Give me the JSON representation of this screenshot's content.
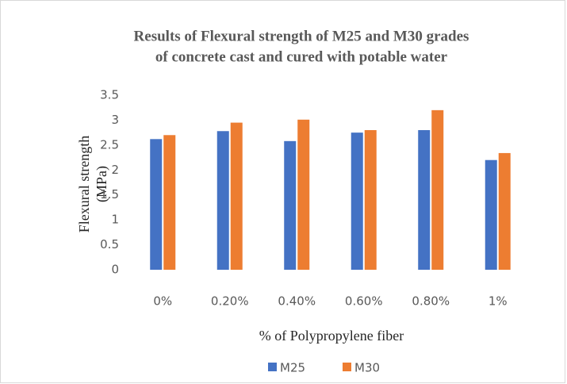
{
  "chart_data": {
    "type": "bar",
    "title": [
      "Results of Flexural strength of M25 and M30 grades",
      "of concrete cast and cured  with potable water"
    ],
    "ylabel": [
      "Flexural strength",
      "(MPa)"
    ],
    "xlabel": "% of Polypropylene fiber",
    "categories": [
      "0%",
      "0.20%",
      "0.40%",
      "0.60%",
      "0.80%",
      "1%"
    ],
    "series": [
      {
        "name": "M25",
        "color": "#4472c4",
        "values": [
          2.62,
          2.78,
          2.58,
          2.75,
          2.8,
          2.2
        ]
      },
      {
        "name": "M30",
        "color": "#ed7d31",
        "values": [
          2.7,
          2.95,
          3.01,
          2.8,
          3.2,
          2.34
        ]
      }
    ],
    "ylim": [
      0,
      3.5
    ],
    "yticks": [
      0,
      0.5,
      1,
      1.5,
      2,
      2.5,
      3,
      3.5
    ],
    "grid": false,
    "legend": "bottom"
  }
}
